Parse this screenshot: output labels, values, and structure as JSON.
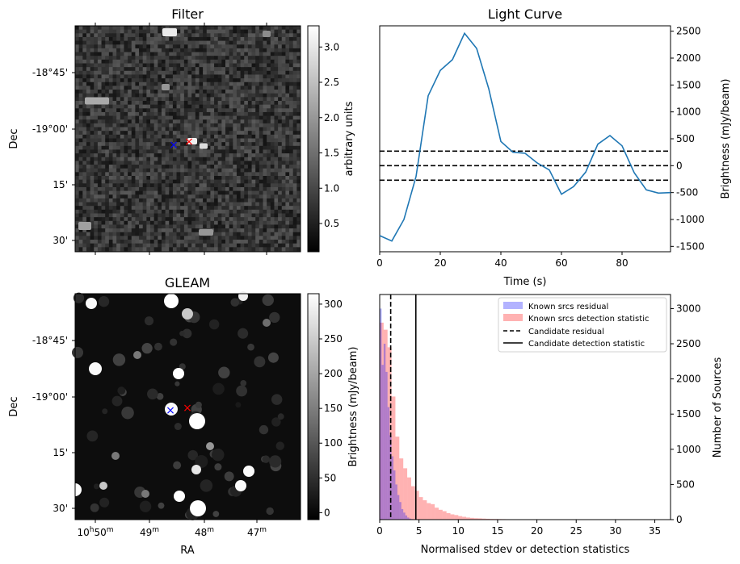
{
  "chart_data": [
    {
      "type": "heatmap",
      "title": "Filter",
      "ylabel": "Dec",
      "y_tick_labels": [
        "-18°45'",
        "-19°00'",
        "15'",
        "30'"
      ],
      "colorbar": {
        "label": "arbitrary units",
        "range": [
          0.1,
          3.3
        ],
        "ticks": [
          "0.5",
          "1.0",
          "1.5",
          "2.0",
          "2.5",
          "3.0"
        ],
        "tick_values": [
          0.5,
          1.0,
          1.5,
          2.0,
          2.5,
          3.0
        ],
        "cmap": "gray"
      },
      "markers": [
        {
          "symbol": "×",
          "color": "#0000ff"
        },
        {
          "symbol": "×",
          "color": "#ff0000"
        }
      ]
    },
    {
      "type": "line",
      "title": "Light Curve",
      "xlabel": "Time (s)",
      "ylabel": "Brightness (mJy/beam)",
      "xlim": [
        0,
        96
      ],
      "ylim": [
        -1600,
        2600
      ],
      "x_ticks": [
        "0",
        "20",
        "40",
        "60",
        "80"
      ],
      "x_tick_values": [
        0,
        20,
        40,
        60,
        80
      ],
      "y_ticks": [
        "-1500",
        "-1000",
        "-500",
        "0",
        "500",
        "1000",
        "1500",
        "2000",
        "2500"
      ],
      "y_tick_values": [
        -1500,
        -1000,
        -500,
        0,
        500,
        1000,
        1500,
        2000,
        2500
      ],
      "series": [
        {
          "color": "#1f77b4",
          "x": [
            0,
            4,
            8,
            12,
            16,
            20,
            24,
            28,
            32,
            36,
            40,
            44,
            48,
            52,
            56,
            60,
            64,
            68,
            72,
            76,
            80,
            84,
            88,
            92,
            96
          ],
          "y": [
            -1300,
            -1400,
            -1000,
            -200,
            1300,
            1770,
            1970,
            2460,
            2180,
            1430,
            450,
            250,
            230,
            50,
            -80,
            -530,
            -390,
            -120,
            400,
            560,
            370,
            -130,
            -450,
            -510,
            -500
          ]
        }
      ],
      "hlines": [
        {
          "y": 270,
          "style": "dashed"
        },
        {
          "y": 0,
          "style": "dashed"
        },
        {
          "y": -270,
          "style": "dashed"
        }
      ]
    },
    {
      "type": "heatmap",
      "title": "GLEAM",
      "xlabel": "RA",
      "ylabel": "Dec",
      "x_tick_labels": [
        "10h50m",
        "49m",
        "48m",
        "47m"
      ],
      "y_tick_labels": [
        "-18°45'",
        "-19°00'",
        "15'",
        "30'"
      ],
      "colorbar": {
        "label": "Brightness (mJy/beam)",
        "range": [
          -10,
          315
        ],
        "ticks": [
          "0",
          "50",
          "100",
          "150",
          "200",
          "250",
          "300"
        ],
        "tick_values": [
          0,
          50,
          100,
          150,
          200,
          250,
          300
        ],
        "cmap": "gray"
      },
      "markers": [
        {
          "symbol": "×",
          "color": "#0000ff"
        },
        {
          "symbol": "×",
          "color": "#ff0000"
        }
      ]
    },
    {
      "type": "bar",
      "xlabel": "Normalised stdev or detection statistics",
      "ylabel": "Number of Sources",
      "xlim": [
        0,
        37
      ],
      "ylim": [
        0,
        3200
      ],
      "x_ticks": [
        "0",
        "5",
        "10",
        "15",
        "20",
        "25",
        "30",
        "35"
      ],
      "x_tick_values": [
        0,
        5,
        10,
        15,
        20,
        25,
        30,
        35
      ],
      "y_ticks": [
        "0",
        "500",
        "1000",
        "1500",
        "2000",
        "2500",
        "3000"
      ],
      "y_tick_values": [
        0,
        500,
        1000,
        1500,
        2000,
        2500,
        3000
      ],
      "legend_position": "top-right",
      "series": [
        {
          "name": "Known srcs residual",
          "color": "#0000ff",
          "bin_width": 0.25,
          "bin_start": 0,
          "values": [
            3000,
            2200,
            2500,
            2100,
            1600,
            1200,
            900,
            700,
            500,
            350,
            250,
            150,
            100,
            60,
            30,
            15,
            8,
            4,
            2,
            1
          ]
        },
        {
          "name": "Known srcs detection statistic",
          "color": "#ff0000",
          "bin_width": 0.5,
          "bin_start": 0,
          "values": [
            2800,
            2700,
            2450,
            1750,
            1180,
            870,
            730,
            600,
            475,
            410,
            320,
            275,
            235,
            220,
            170,
            140,
            120,
            92,
            75,
            65,
            50,
            40,
            30,
            25,
            20,
            18,
            15,
            12,
            10,
            9,
            8,
            7,
            6,
            5,
            5,
            4,
            4,
            3,
            3,
            3,
            2,
            2,
            2,
            2,
            2,
            1,
            1,
            1,
            1,
            1,
            1,
            1,
            1,
            1,
            1,
            1,
            1,
            1,
            1,
            1,
            1,
            1,
            1,
            1,
            1,
            1,
            1,
            1,
            1,
            1,
            1,
            1
          ]
        }
      ],
      "vlines": [
        {
          "name": "Candidate residual",
          "x": 1.4,
          "style": "dashed"
        },
        {
          "name": "Candidate detection statistic",
          "x": 4.6,
          "style": "solid"
        }
      ]
    }
  ]
}
